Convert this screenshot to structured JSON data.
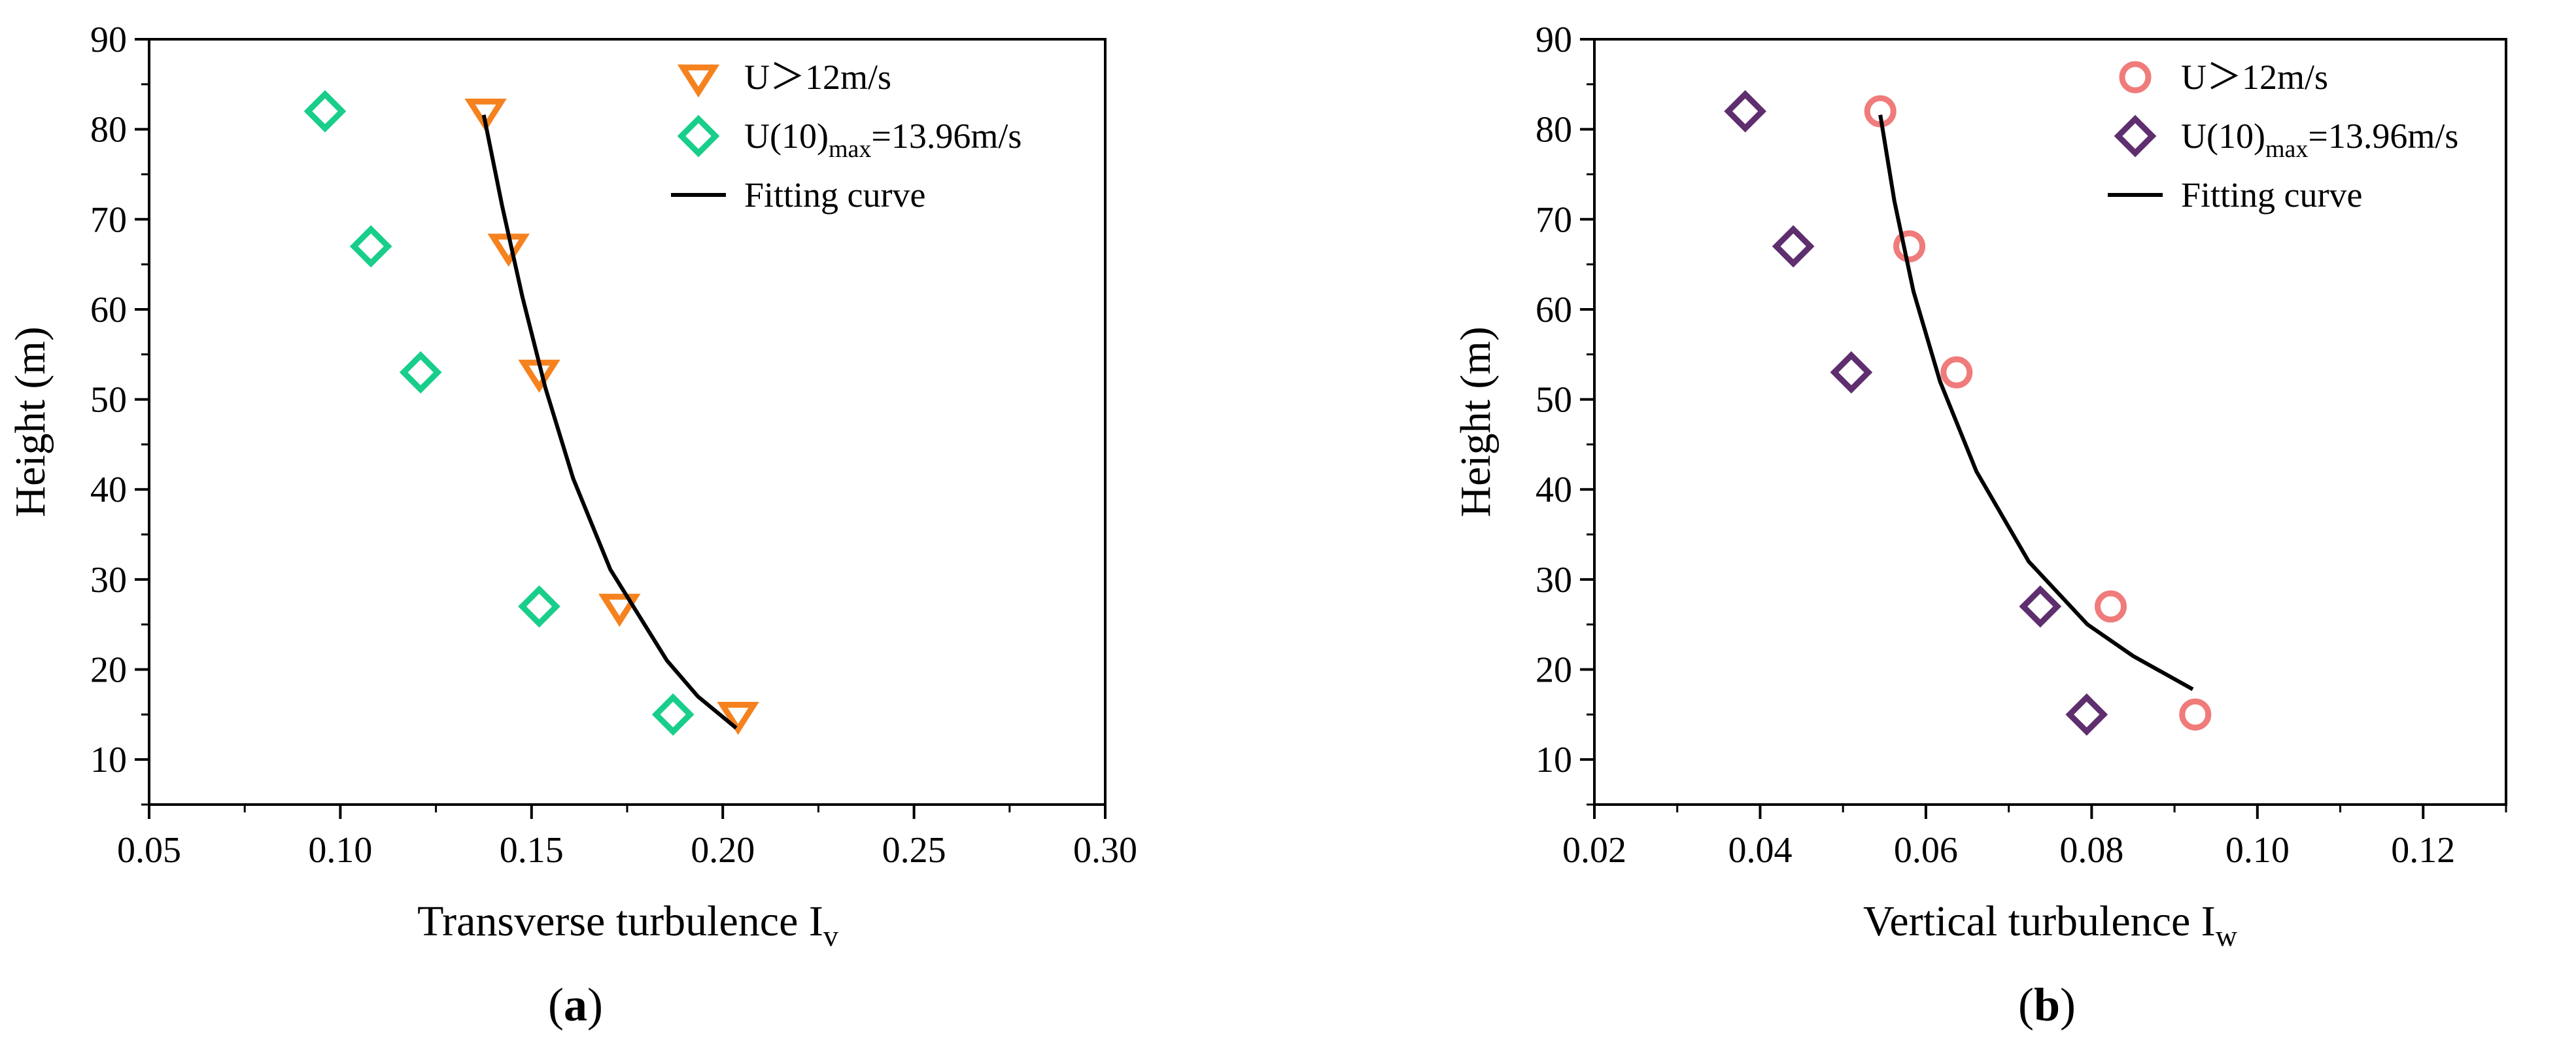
{
  "chart_data": [
    {
      "type": "scatter",
      "panel_label": "a",
      "title": "",
      "xlabel": "Transverse turbulence I",
      "xlabel_sub": "v",
      "ylabel": "Height (m)",
      "xlim": [
        0.05,
        0.3
      ],
      "ylim": [
        5,
        90
      ],
      "xticks": [
        0.05,
        0.1,
        0.15,
        0.2,
        0.25,
        0.3
      ],
      "xtick_labels": [
        "0.05",
        "0.10",
        "0.15",
        "0.20",
        "0.25",
        "0.30"
      ],
      "yticks": [
        10,
        20,
        30,
        40,
        50,
        60,
        70,
        80,
        90
      ],
      "ytick_labels": [
        "10",
        "20",
        "30",
        "40",
        "50",
        "60",
        "70",
        "80",
        "90"
      ],
      "grid": false,
      "legend_position": "top-right",
      "series": [
        {
          "name": "U＞12m/s",
          "marker": "triangle-down",
          "color": "#F5821F",
          "points": [
            {
              "x": 0.138,
              "y": 82
            },
            {
              "x": 0.144,
              "y": 67
            },
            {
              "x": 0.152,
              "y": 53
            },
            {
              "x": 0.173,
              "y": 27
            },
            {
              "x": 0.204,
              "y": 15
            }
          ]
        },
        {
          "name_main": "U(10)",
          "name_sub": "max",
          "name_tail": "=13.96m/s",
          "marker": "diamond",
          "color": "#18CE8A",
          "points": [
            {
              "x": 0.096,
              "y": 82
            },
            {
              "x": 0.108,
              "y": 67
            },
            {
              "x": 0.121,
              "y": 53
            },
            {
              "x": 0.152,
              "y": 27
            },
            {
              "x": 0.187,
              "y": 15
            }
          ]
        },
        {
          "name": "Fitting curve",
          "marker": "line",
          "color": "#000000",
          "points": [
            {
              "x": 0.1375,
              "y": 81.6
            },
            {
              "x": 0.1423,
              "y": 71.5
            },
            {
              "x": 0.1476,
              "y": 61.4
            },
            {
              "x": 0.1536,
              "y": 51.3
            },
            {
              "x": 0.1609,
              "y": 41.2
            },
            {
              "x": 0.1706,
              "y": 31.1
            },
            {
              "x": 0.1854,
              "y": 21.0
            },
            {
              "x": 0.1935,
              "y": 17.0
            },
            {
              "x": 0.2035,
              "y": 13.5
            }
          ]
        }
      ]
    },
    {
      "type": "scatter",
      "panel_label": "b",
      "title": "",
      "xlabel": "Vertical turbulence I",
      "xlabel_sub": "w",
      "ylabel": "Height (m)",
      "xlim": [
        0.02,
        0.13
      ],
      "ylim": [
        5,
        90
      ],
      "xticks": [
        0.02,
        0.04,
        0.06,
        0.08,
        0.1,
        0.12
      ],
      "xtick_labels": [
        "0.02",
        "0.04",
        "0.06",
        "0.08",
        "0.10",
        "0.12"
      ],
      "yticks": [
        10,
        20,
        30,
        40,
        50,
        60,
        70,
        80,
        90
      ],
      "ytick_labels": [
        "10",
        "20",
        "30",
        "40",
        "50",
        "60",
        "70",
        "80",
        "90"
      ],
      "grid": false,
      "legend_position": "top-right",
      "series": [
        {
          "name": "U＞12m/s",
          "marker": "circle",
          "color": "#F07B7B",
          "points": [
            {
              "x": 0.0545,
              "y": 82
            },
            {
              "x": 0.058,
              "y": 67
            },
            {
              "x": 0.0637,
              "y": 53
            },
            {
              "x": 0.0823,
              "y": 27
            },
            {
              "x": 0.0925,
              "y": 15
            }
          ]
        },
        {
          "name_main": "U(10)",
          "name_sub": "max",
          "name_tail": "=13.96m/s",
          "marker": "diamond",
          "color": "#5E2E6E",
          "points": [
            {
              "x": 0.0382,
              "y": 82
            },
            {
              "x": 0.044,
              "y": 67
            },
            {
              "x": 0.051,
              "y": 53
            },
            {
              "x": 0.0738,
              "y": 27
            },
            {
              "x": 0.0794,
              "y": 15
            }
          ]
        },
        {
          "name": "Fitting curve",
          "marker": "line",
          "color": "#000000",
          "points": [
            {
              "x": 0.0545,
              "y": 81.6
            },
            {
              "x": 0.0562,
              "y": 72.0
            },
            {
              "x": 0.0585,
              "y": 62.0
            },
            {
              "x": 0.0617,
              "y": 52.0
            },
            {
              "x": 0.0661,
              "y": 42.0
            },
            {
              "x": 0.0724,
              "y": 32.0
            },
            {
              "x": 0.0795,
              "y": 25.0
            },
            {
              "x": 0.085,
              "y": 21.5
            },
            {
              "x": 0.0922,
              "y": 17.8
            }
          ]
        }
      ]
    }
  ]
}
